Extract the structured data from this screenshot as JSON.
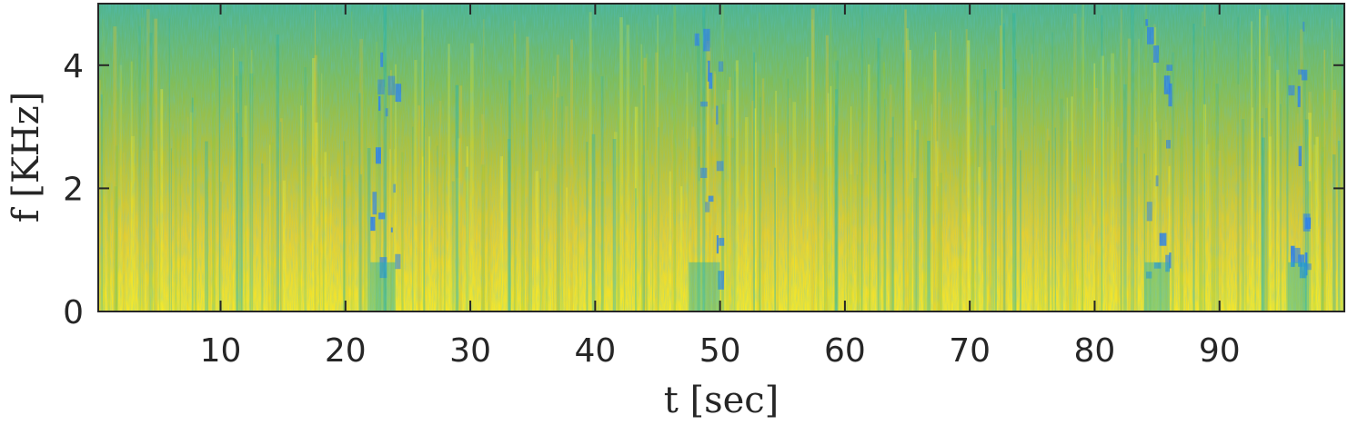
{
  "chart_data": {
    "type": "heatmap",
    "title": "",
    "xlabel": "t [sec]",
    "ylabel": "f [KHz]",
    "xlim": [
      0.2,
      100
    ],
    "ylim": [
      0,
      5
    ],
    "x_ticks": [
      10,
      20,
      30,
      40,
      50,
      60,
      70,
      80,
      90
    ],
    "x_tick_labels": [
      "10",
      "20",
      "30",
      "40",
      "50",
      "60",
      "70",
      "80",
      "90"
    ],
    "y_ticks": [
      0,
      2,
      4
    ],
    "y_tick_labels": [
      "0",
      "2",
      "4"
    ],
    "grid": false,
    "colormap": "parula",
    "colors": {
      "low": "#2d7ee8",
      "mid_low": "#20b2aa",
      "mid": "#8ec640",
      "mid_high": "#d8c22e",
      "high": "#f7f028"
    },
    "description_values": {
      "quiet_intervals_sec": [
        [
          22,
          24
        ],
        [
          47.5,
          50
        ],
        [
          84,
          86
        ],
        [
          95.5,
          97
        ]
      ],
      "energy_concentration_khz": [
        0,
        2
      ]
    }
  }
}
